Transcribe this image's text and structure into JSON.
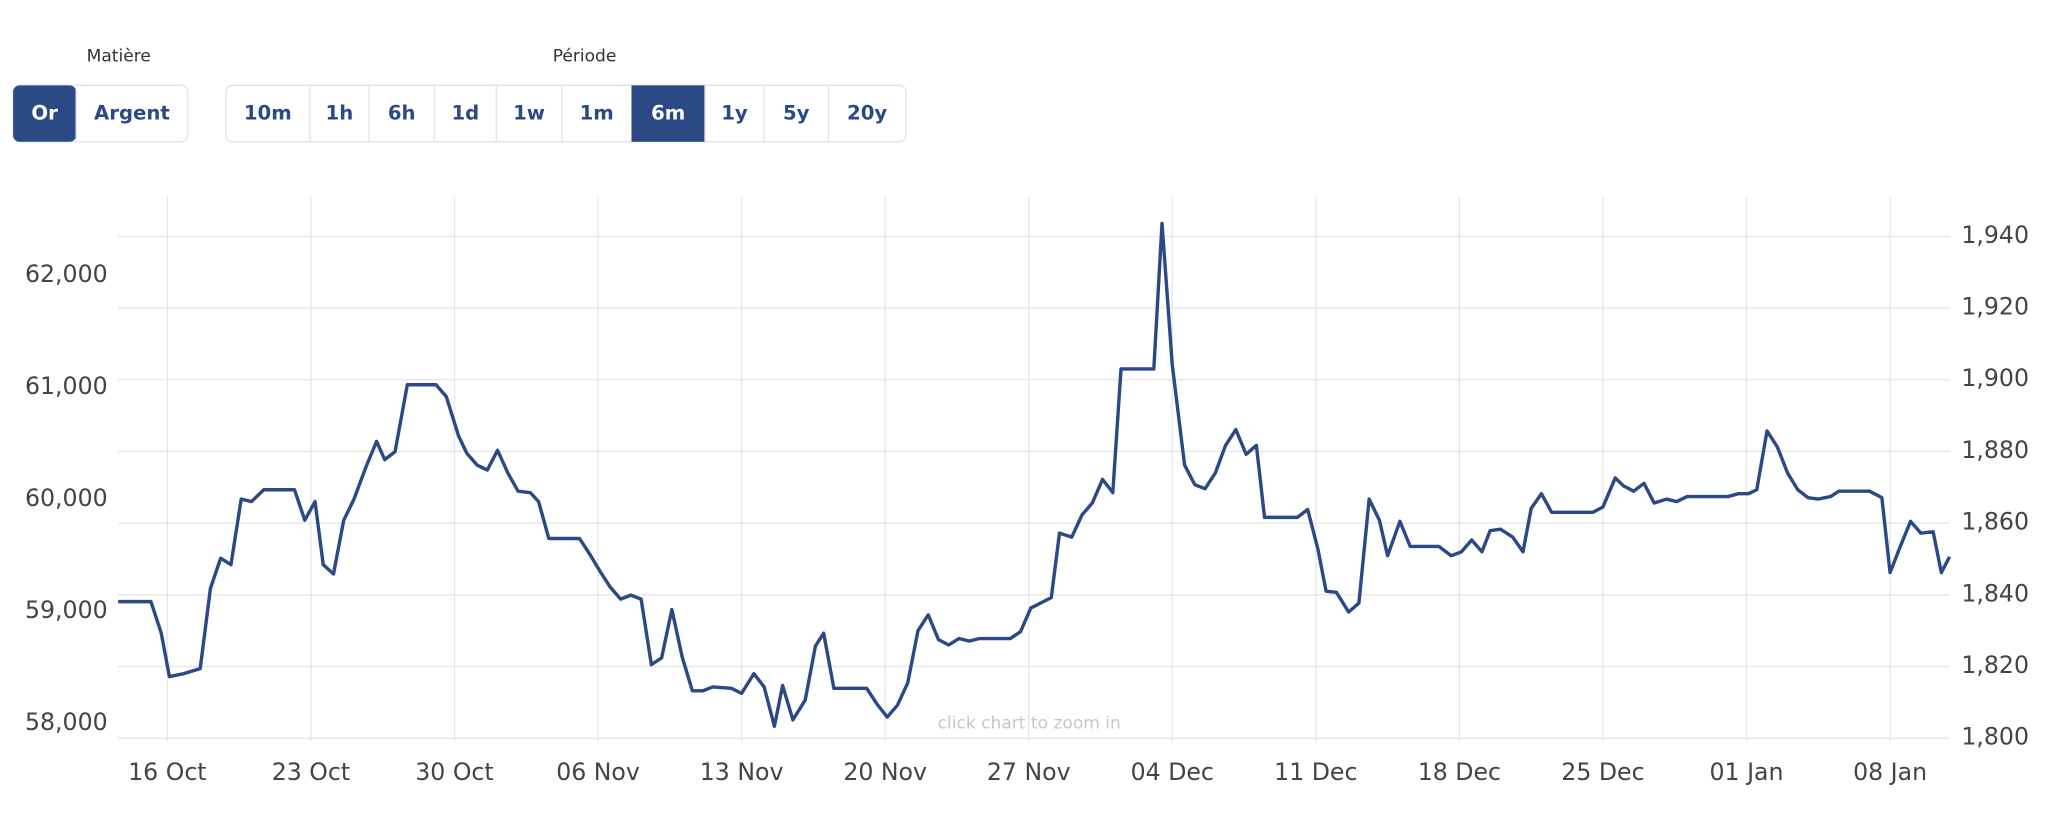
{
  "controls": {
    "material_label": "Matière",
    "materials": [
      "Or",
      "Argent"
    ],
    "material_active": 0,
    "period_label": "Période",
    "periods": [
      "10m",
      "1h",
      "6h",
      "1d",
      "1w",
      "1m",
      "6m",
      "1y",
      "5y",
      "20y"
    ],
    "period_active": 6
  },
  "chart_data": {
    "type": "line",
    "annotation": "click chart to zoom in",
    "xlim": [
      -2.4,
      86.9
    ],
    "xticks": [
      {
        "value": 0,
        "label": "16 Oct"
      },
      {
        "value": 7,
        "label": "23 Oct"
      },
      {
        "value": 14,
        "label": "30 Oct"
      },
      {
        "value": 21,
        "label": "06 Nov"
      },
      {
        "value": 28,
        "label": "13 Nov"
      },
      {
        "value": 35,
        "label": "20 Nov"
      },
      {
        "value": 42,
        "label": "27 Nov"
      },
      {
        "value": 49,
        "label": "04 Dec"
      },
      {
        "value": 56,
        "label": "11 Dec"
      },
      {
        "value": 63,
        "label": "18 Dec"
      },
      {
        "value": 70,
        "label": "25 Dec"
      },
      {
        "value": 77,
        "label": "01 Jan"
      },
      {
        "value": 84,
        "label": "08 Jan"
      }
    ],
    "ylim": [
      57836,
      62704
    ],
    "yticks": [
      {
        "value": 58000,
        "label": "58,000"
      },
      {
        "value": 59000,
        "label": "59,000"
      },
      {
        "value": 60000,
        "label": "60,000"
      },
      {
        "value": 61000,
        "label": "61,000"
      },
      {
        "value": 62000,
        "label": "62,000"
      }
    ],
    "y2lim": [
      1799,
      1951
    ],
    "y2ticks": [
      {
        "value": 1800,
        "label": "1,800"
      },
      {
        "value": 1820,
        "label": "1,820"
      },
      {
        "value": 1840,
        "label": "1,840"
      },
      {
        "value": 1860,
        "label": "1,860"
      },
      {
        "value": 1880,
        "label": "1,880"
      },
      {
        "value": 1900,
        "label": "1,900"
      },
      {
        "value": 1920,
        "label": "1,920"
      },
      {
        "value": 1940,
        "label": "1,940"
      }
    ],
    "grid": true,
    "x": [
      -2.4,
      -0.8,
      -0.3,
      0.1,
      0.8,
      1.6,
      2.1,
      2.6,
      3.1,
      3.6,
      4.1,
      4.7,
      6.2,
      6.7,
      7.2,
      7.6,
      8.1,
      8.6,
      9.1,
      9.7,
      10.2,
      10.6,
      11.1,
      11.7,
      13.1,
      13.6,
      14.2,
      14.6,
      15.1,
      15.6,
      16.1,
      16.6,
      17.1,
      17.7,
      18.1,
      18.6,
      20.1,
      20.6,
      21.1,
      21.6,
      22.1,
      22.6,
      23.1,
      23.6,
      24.1,
      24.6,
      25.1,
      25.6,
      26.1,
      26.6,
      27.5,
      28.0,
      28.6,
      29.1,
      29.6,
      30.0,
      30.5,
      31.1,
      31.6,
      32.0,
      32.5,
      34.1,
      34.6,
      35.1,
      35.6,
      36.1,
      36.6,
      37.1,
      37.6,
      38.1,
      38.6,
      39.1,
      39.6,
      41.1,
      41.6,
      42.1,
      43.1,
      43.5,
      44.1,
      44.6,
      45.1,
      45.6,
      46.1,
      46.5,
      48.1,
      48.5,
      49.0,
      49.6,
      50.1,
      50.6,
      51.1,
      51.6,
      52.1,
      52.6,
      53.1,
      53.5,
      55.1,
      55.6,
      56.1,
      56.5,
      57.0,
      57.6,
      58.1,
      58.6,
      59.1,
      59.5,
      60.1,
      60.6,
      62.0,
      62.6,
      63.1,
      63.6,
      64.1,
      64.5,
      65.0,
      65.6,
      66.1,
      66.5,
      67.0,
      67.5,
      69.5,
      70.0,
      70.6,
      71.0,
      71.5,
      72.0,
      72.5,
      73.1,
      73.6,
      74.1,
      76.1,
      76.6,
      77.1,
      77.5,
      78.0,
      78.5,
      79.0,
      79.5,
      80.0,
      80.5,
      81.1,
      81.5,
      83.0,
      83.6,
      84.0,
      84.5,
      85.0,
      85.5,
      86.1,
      86.5,
      86.9
    ],
    "series": [
      {
        "color": "#2b4a85",
        "axis": "y2",
        "values": [
          1838.1,
          1838.1,
          1829.3,
          1817.2,
          1818.0,
          1819.4,
          1841.8,
          1850.2,
          1848.4,
          1866.7,
          1866.0,
          1869.3,
          1869.3,
          1860.8,
          1866.0,
          1848.4,
          1845.8,
          1860.8,
          1866.7,
          1875.9,
          1882.8,
          1877.7,
          1879.9,
          1898.6,
          1898.6,
          1895.3,
          1884.3,
          1879.5,
          1876.2,
          1874.8,
          1880.3,
          1874.0,
          1868.9,
          1868.5,
          1866.0,
          1855.7,
          1855.7,
          1851.3,
          1846.5,
          1842.1,
          1838.8,
          1839.9,
          1838.8,
          1820.5,
          1822.4,
          1835.9,
          1822.7,
          1813.2,
          1813.2,
          1814.3,
          1813.9,
          1812.5,
          1818.0,
          1814.3,
          1803.3,
          1814.7,
          1805.1,
          1810.6,
          1825.7,
          1829.3,
          1813.9,
          1813.9,
          1809.5,
          1805.9,
          1809.2,
          1815.4,
          1830.0,
          1834.4,
          1827.5,
          1826.0,
          1827.8,
          1827.1,
          1827.8,
          1827.8,
          1829.7,
          1836.3,
          1839.2,
          1857.2,
          1856.1,
          1862.3,
          1865.6,
          1872.2,
          1868.5,
          1903.0,
          1903.0,
          1943.6,
          1904.1,
          1876.2,
          1870.7,
          1869.6,
          1874.0,
          1881.7,
          1886.1,
          1879.2,
          1881.7,
          1861.6,
          1861.6,
          1863.8,
          1852.8,
          1841.0,
          1840.7,
          1835.2,
          1837.7,
          1866.7,
          1860.8,
          1850.9,
          1860.5,
          1853.5,
          1853.5,
          1850.9,
          1852.0,
          1855.3,
          1852.0,
          1857.9,
          1858.3,
          1856.1,
          1852.0,
          1864.1,
          1868.2,
          1863.0,
          1863.0,
          1864.5,
          1872.6,
          1870.4,
          1868.9,
          1871.1,
          1865.6,
          1866.7,
          1866.0,
          1867.4,
          1867.4,
          1868.2,
          1868.2,
          1869.3,
          1885.7,
          1881.3,
          1874.0,
          1869.3,
          1867.1,
          1866.7,
          1867.4,
          1868.9,
          1868.9,
          1867.1,
          1846.2,
          1853.5,
          1860.5,
          1857.2,
          1857.6,
          1846.2,
          1850.6
        ]
      }
    ]
  }
}
